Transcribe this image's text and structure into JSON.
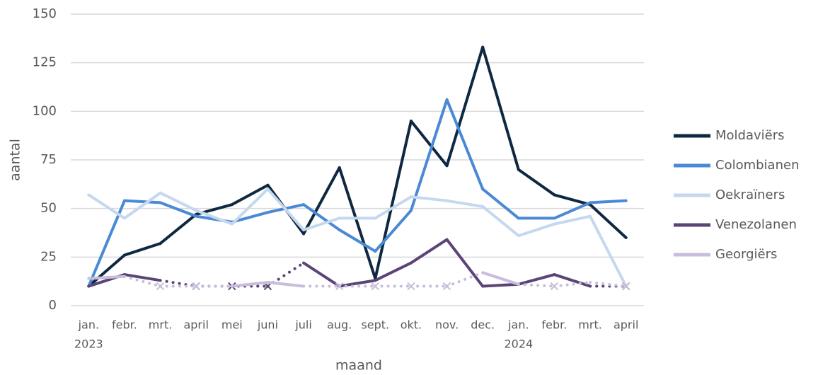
{
  "chart_data": {
    "type": "line",
    "x_label": "maand",
    "y_label": "aantal",
    "categories": [
      [
        "jan.",
        "2023"
      ],
      [
        "febr."
      ],
      [
        "mrt."
      ],
      [
        "april"
      ],
      [
        "mei"
      ],
      [
        "juni"
      ],
      [
        "juli"
      ],
      [
        "aug."
      ],
      [
        "sept."
      ],
      [
        "okt."
      ],
      [
        "nov."
      ],
      [
        "dec."
      ],
      [
        "jan.",
        "2024"
      ],
      [
        "febr."
      ],
      [
        "mrt."
      ],
      [
        "april"
      ]
    ],
    "ylim": [
      0,
      150
    ],
    "yticks": [
      0,
      25,
      50,
      75,
      100,
      125,
      150
    ],
    "grid": true,
    "legend": "right",
    "series": [
      {
        "name": "Moldaviërs",
        "color": "#0e2841",
        "values": [
          10,
          26,
          32,
          47,
          52,
          62,
          37,
          71,
          14,
          95,
          72,
          133,
          70,
          57,
          52,
          35
        ]
      },
      {
        "name": "Colombianen",
        "color": "#4a89d6",
        "values": [
          10,
          54,
          53,
          46,
          43,
          48,
          52,
          39,
          28,
          49,
          106,
          60,
          45,
          45,
          53,
          54
        ]
      },
      {
        "name": "Oekraïners",
        "color": "#c5d8ef",
        "values": [
          57,
          45,
          58,
          49,
          42,
          60,
          39,
          45,
          45,
          56,
          54,
          51,
          36,
          42,
          46,
          10
        ]
      },
      {
        "name": "Venezolanen",
        "color": "#5b4476",
        "values": [
          10,
          16,
          13,
          10,
          10,
          10,
          22,
          10,
          13,
          22,
          34,
          10,
          11,
          16,
          10,
          10
        ],
        "flagged": [
          false,
          false,
          false,
          true,
          true,
          true,
          false,
          false,
          false,
          false,
          false,
          false,
          false,
          false,
          false,
          true
        ]
      },
      {
        "name": "Georgiërs",
        "color": "#c8bddc",
        "values": [
          14,
          15,
          10,
          10,
          10,
          12,
          10,
          10,
          10,
          10,
          10,
          17,
          11,
          10,
          12,
          10
        ],
        "flagged": [
          false,
          false,
          true,
          true,
          false,
          false,
          false,
          true,
          true,
          true,
          true,
          false,
          false,
          true,
          false,
          true
        ]
      }
    ]
  }
}
